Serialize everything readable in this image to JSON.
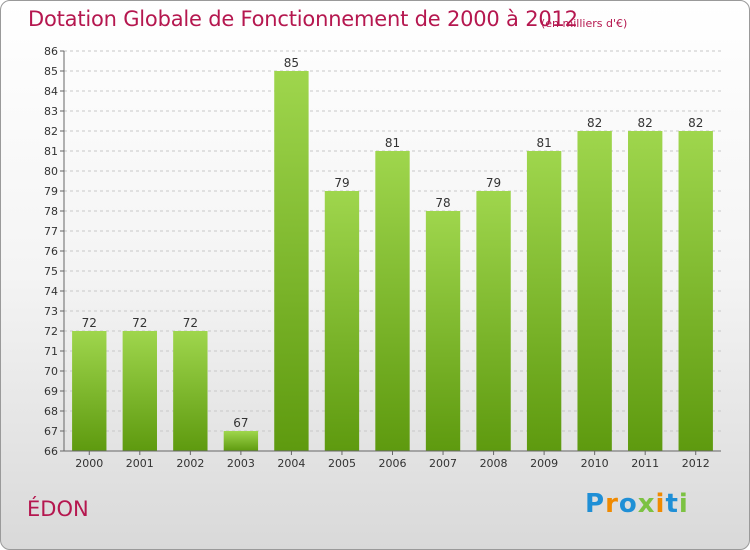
{
  "title": "Dotation Globale de Fonctionnement de 2000 à 2012",
  "unit_note": "(en milliers d'€)",
  "commune": "ÉDON",
  "logo": {
    "text": "Proxiti",
    "letters": [
      {
        "ch": "P",
        "color": "#1f8fd6"
      },
      {
        "ch": "r",
        "color": "#f08a00"
      },
      {
        "ch": "o",
        "color": "#1f8fd6"
      },
      {
        "ch": "x",
        "color": "#7cc242"
      },
      {
        "ch": "i",
        "color": "#f08a00"
      },
      {
        "ch": "t",
        "color": "#1f8fd6"
      },
      {
        "ch": "i",
        "color": "#7cc242"
      }
    ]
  },
  "colors": {
    "accent": "#b5174f",
    "bar_top": "#9fd64d",
    "bar_bottom": "#5e9a0f",
    "grid": "#c8c8c8",
    "text": "#333333"
  },
  "chart_data": {
    "type": "bar",
    "categories": [
      "2000",
      "2001",
      "2002",
      "2003",
      "2004",
      "2005",
      "2006",
      "2007",
      "2008",
      "2009",
      "2010",
      "2011",
      "2012"
    ],
    "values": [
      72,
      72,
      72,
      67,
      85,
      79,
      81,
      78,
      79,
      81,
      82,
      82,
      82
    ],
    "title": "Dotation Globale de Fonctionnement de 2000 à 2012",
    "xlabel": "",
    "ylabel": "",
    "ylim": [
      66,
      86
    ],
    "yticks": [
      66,
      67,
      68,
      69,
      70,
      71,
      72,
      73,
      74,
      75,
      76,
      77,
      78,
      79,
      80,
      81,
      82,
      83,
      84,
      85,
      86
    ],
    "grid": true,
    "data_labels": true,
    "legend": "none"
  }
}
